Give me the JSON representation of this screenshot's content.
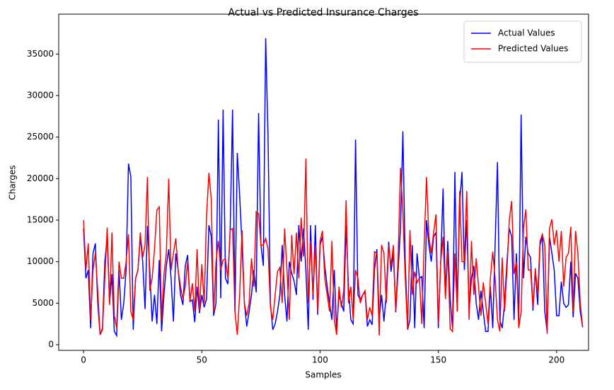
{
  "chart_data": {
    "type": "line",
    "title": "Actual vs Predicted Insurance Charges",
    "x_label": "Samples",
    "y_label": "Charges",
    "x": [
      0,
      1,
      2,
      3,
      4,
      5,
      6,
      7,
      8,
      9,
      10,
      11,
      12,
      13,
      14,
      15,
      16,
      17,
      18,
      19,
      20,
      21,
      22,
      23,
      24,
      25,
      26,
      27,
      28,
      29,
      30,
      31,
      32,
      33,
      34,
      35,
      36,
      37,
      38,
      39,
      40,
      41,
      42,
      43,
      44,
      45,
      46,
      47,
      48,
      49,
      50,
      51,
      52,
      53,
      54,
      55,
      56,
      57,
      58,
      59,
      60,
      61,
      62,
      63,
      64,
      65,
      66,
      67,
      68,
      69,
      70,
      71,
      72,
      73,
      74,
      75,
      76,
      77,
      78,
      79,
      80,
      81,
      82,
      83,
      84,
      85,
      86,
      87,
      88,
      89,
      90,
      91,
      92,
      93,
      94,
      95,
      96,
      97,
      98,
      99,
      100,
      101,
      102,
      103,
      104,
      105,
      106,
      107,
      108,
      109,
      110,
      111,
      112,
      113,
      114,
      115,
      116,
      117,
      118,
      119,
      120,
      121,
      122,
      123,
      124,
      125,
      126,
      127,
      128,
      129,
      130,
      131,
      132,
      133,
      134,
      135,
      136,
      137,
      138,
      139,
      140,
      141,
      142,
      143,
      144,
      145,
      146,
      147,
      148,
      149,
      150,
      151,
      152,
      153,
      154,
      155,
      156,
      157,
      158,
      159,
      160,
      161,
      162,
      163,
      164,
      165,
      166,
      167,
      168,
      169,
      170,
      171,
      172,
      173,
      174,
      175,
      176,
      177,
      178,
      179,
      180,
      181,
      182,
      183,
      184,
      185,
      186,
      187,
      188,
      189,
      190,
      191,
      192,
      193,
      194,
      195,
      196,
      197,
      198,
      199,
      200,
      201,
      202,
      203,
      204,
      205,
      206,
      207,
      208,
      209,
      210,
      211
    ],
    "series": [
      {
        "name": "Actual Values",
        "color": "#0000ff",
        "values": [
          14000,
          8000,
          9000,
          2000,
          11000,
          12200,
          5000,
          1200,
          2000,
          10000,
          13000,
          5000,
          8500,
          1600,
          1100,
          9000,
          3000,
          5000,
          9000,
          21800,
          20200,
          1800,
          8000,
          9000,
          13000,
          10000,
          4300,
          14300,
          9000,
          2800,
          6000,
          2500,
          10200,
          1600,
          6000,
          9500,
          11500,
          8000,
          2800,
          11000,
          9000,
          6000,
          4800,
          9500,
          10800,
          5200,
          5400,
          2700,
          7000,
          3800,
          6000,
          4500,
          5500,
          14400,
          13000,
          3500,
          5000,
          27100,
          5600,
          28300,
          8000,
          7300,
          14000,
          28300,
          4000,
          23100,
          18000,
          12000,
          5000,
          2200,
          4000,
          6000,
          9000,
          6300,
          27900,
          12000,
          9500,
          36900,
          25000,
          5000,
          1800,
          2500,
          4000,
          6000,
          12000,
          6000,
          2800,
          10000,
          8600,
          7700,
          6000,
          14400,
          10000,
          14000,
          9000,
          1800,
          14400,
          5400,
          14400,
          3600,
          12000,
          13000,
          9500,
          7000,
          5000,
          3000,
          9000,
          1600,
          6000,
          5000,
          4000,
          14400,
          7000,
          3000,
          2500,
          24700,
          6000,
          5400,
          6000,
          6300,
          2200,
          3000,
          2400,
          9000,
          11500,
          3000,
          6000,
          2800,
          6200,
          12400,
          8800,
          11000,
          3900,
          9000,
          14000,
          25700,
          10000,
          1800,
          3000,
          12000,
          2000,
          11000,
          8000,
          8200,
          2000,
          15000,
          12000,
          10000,
          13000,
          13500,
          2000,
          10000,
          18800,
          6000,
          12500,
          5500,
          2000,
          20800,
          4000,
          17000,
          20800,
          9000,
          15000,
          4000,
          8000,
          9500,
          5000,
          3000,
          6500,
          4000,
          1600,
          1600,
          7000,
          2000,
          12000,
          22000,
          3000,
          2000,
          5000,
          10000,
          14000,
          13000,
          3000,
          11000,
          2800,
          27700,
          8000,
          13000,
          11000,
          10500,
          4100,
          9000,
          4800,
          12000,
          13000,
          4000,
          1600,
          13000,
          11000,
          9000,
          3500,
          3500,
          7600,
          5000,
          4500,
          4800,
          10000,
          3300,
          8600,
          8000,
          4000,
          2100
        ]
      },
      {
        "name": "Predicted Values",
        "color": "#ff0000",
        "values": [
          15000,
          9000,
          12200,
          3000,
          9000,
          11000,
          6500,
          1200,
          1800,
          8000,
          14100,
          4800,
          13500,
          3500,
          2000,
          10000,
          8000,
          8000,
          10000,
          13300,
          4000,
          3000,
          8000,
          9000,
          13500,
          10500,
          12000,
          20200,
          6500,
          8000,
          11500,
          16200,
          16600,
          3000,
          8500,
          11000,
          20000,
          9000,
          11000,
          12800,
          9000,
          7000,
          5500,
          7000,
          10000,
          5200,
          7400,
          4000,
          11500,
          4000,
          9700,
          5000,
          15500,
          20700,
          17500,
          4000,
          10000,
          12500,
          9000,
          10200,
          10300,
          8000,
          13800,
          14000,
          4000,
          1200,
          6000,
          13800,
          5000,
          3500,
          5000,
          10400,
          7000,
          16000,
          15800,
          12000,
          12000,
          12800,
          11500,
          4500,
          3000,
          6000,
          8800,
          9300,
          5000,
          14000,
          9000,
          3000,
          13200,
          8500,
          13500,
          8000,
          15300,
          10600,
          22400,
          5000,
          12500,
          6000,
          12000,
          4000,
          12500,
          13700,
          8000,
          6000,
          4000,
          12500,
          3000,
          1200,
          7000,
          4500,
          6500,
          17400,
          5000,
          7000,
          3000,
          9000,
          8000,
          5000,
          6000,
          6500,
          3000,
          4500,
          3500,
          11200,
          11000,
          1100,
          12000,
          11000,
          5000,
          12000,
          9500,
          12000,
          4000,
          10500,
          21300,
          16000,
          8000,
          1800,
          13800,
          6000,
          8800,
          7500,
          8000,
          2500,
          12000,
          20200,
          13000,
          11000,
          13500,
          15700,
          2500,
          10000,
          13000,
          5500,
          11300,
          1900,
          1600,
          11000,
          4000,
          18500,
          10000,
          10000,
          18500,
          3000,
          12500,
          6000,
          10400,
          7000,
          3500,
          7500,
          5000,
          2500,
          8000,
          11200,
          8000,
          3000,
          1600,
          10500,
          4000,
          9000,
          15000,
          17300,
          8500,
          10000,
          2000,
          4000,
          14000,
          16300,
          9000,
          9000,
          4500,
          9200,
          6000,
          12500,
          13300,
          12000,
          1300,
          14000,
          15100,
          12000,
          13800,
          10000,
          13700,
          7000,
          10500,
          11000,
          14200,
          4000,
          13700,
          11000,
          5000,
          2100
        ]
      }
    ],
    "xlim": [
      -10.5,
      213.5
    ],
    "xticks": [
      0,
      50,
      100,
      150,
      200
    ],
    "ylim": [
      -680,
      39800
    ],
    "yticks": [
      0,
      5000,
      10000,
      15000,
      20000,
      25000,
      30000,
      35000
    ],
    "legend": "upper right"
  }
}
